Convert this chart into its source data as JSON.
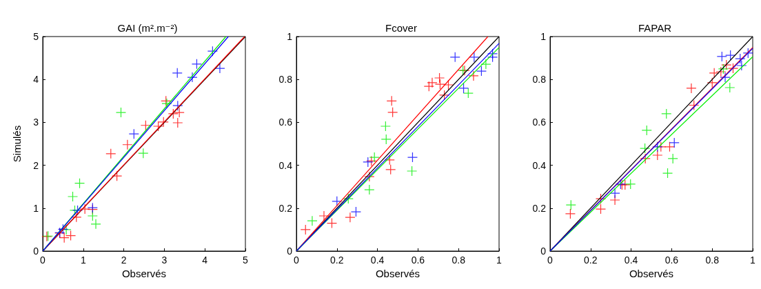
{
  "chart_data": [
    {
      "type": "scatter",
      "title": "GAI (m².m⁻²)",
      "xlabel": "Observés",
      "ylabel": "Simulés",
      "xlim": [
        0,
        5
      ],
      "ylim": [
        0,
        5
      ],
      "xticks": [
        0,
        1,
        2,
        3,
        4,
        5
      ],
      "yticks": [
        0,
        1,
        2,
        3,
        4,
        5
      ],
      "grid": false,
      "series": [
        {
          "marker": "cross",
          "color": "#ff0000",
          "x": [
            0.1,
            0.42,
            0.53,
            0.69,
            0.83,
            1.04,
            1.23,
            1.68,
            1.83,
            2.09,
            2.54,
            2.85,
            2.98,
            3.04,
            3.22,
            3.37,
            3.33
          ],
          "values": [
            0.34,
            0.42,
            0.31,
            0.36,
            0.79,
            0.98,
            0.97,
            2.27,
            1.75,
            2.48,
            2.93,
            2.91,
            3.01,
            3.5,
            3.2,
            3.23,
            2.99
          ]
        },
        {
          "marker": "cross",
          "color": "#00ee00",
          "x": [
            0.13,
            0.58,
            0.74,
            0.91,
            0.79,
            1.23,
            1.31,
            1.93,
            2.48,
            3.06
          ],
          "values": [
            0.35,
            0.5,
            1.27,
            1.58,
            0.95,
            0.82,
            0.63,
            3.23,
            2.28,
            3.44
          ]
        },
        {
          "marker": "cross",
          "color": "#0000ff",
          "x": [
            0.42,
            0.5,
            0.86,
            1.23,
            2.25,
            3.32,
            3.33,
            3.69,
            3.8,
            4.19,
            4.37
          ],
          "values": [
            0.43,
            0.51,
            0.95,
            1.01,
            2.73,
            4.15,
            3.39,
            4.05,
            4.36,
            4.66,
            4.26
          ]
        },
        {
          "type": "line",
          "marker": "none",
          "color": "#000000",
          "x": [
            0,
            5
          ],
          "values": [
            0,
            5
          ]
        },
        {
          "type": "line",
          "marker": "none",
          "color": "#ff0000",
          "x": [
            0,
            4.98
          ],
          "values": [
            0,
            5
          ]
        },
        {
          "type": "line",
          "marker": "none",
          "color": "#00ee00",
          "x": [
            0,
            4.52
          ],
          "values": [
            0,
            5
          ]
        },
        {
          "type": "line",
          "marker": "none",
          "color": "#0000ff",
          "x": [
            0,
            4.58
          ],
          "values": [
            0,
            5
          ]
        }
      ]
    },
    {
      "type": "scatter",
      "title": "Fcover",
      "xlabel": "Observés",
      "xlim": [
        0,
        1
      ],
      "ylim": [
        0,
        1
      ],
      "xticks": [
        0,
        0.2,
        0.4,
        0.6,
        0.8,
        1
      ],
      "yticks": [
        0,
        0.2,
        0.4,
        0.6,
        0.8,
        1
      ],
      "grid": false,
      "series": [
        {
          "marker": "cross",
          "color": "#ff0000",
          "x": [
            0.045,
            0.136,
            0.175,
            0.265,
            0.36,
            0.37,
            0.46,
            0.465,
            0.47,
            0.475,
            0.654,
            0.67,
            0.706,
            0.709,
            0.75,
            0.73,
            0.83,
            0.874
          ],
          "values": [
            0.1,
            0.164,
            0.13,
            0.157,
            0.347,
            0.42,
            0.425,
            0.38,
            0.7,
            0.647,
            0.768,
            0.785,
            0.807,
            0.778,
            0.775,
            0.727,
            0.842,
            0.817
          ]
        },
        {
          "marker": "cross",
          "color": "#00ee00",
          "x": [
            0.078,
            0.256,
            0.36,
            0.385,
            0.44,
            0.443,
            0.57,
            0.822,
            0.848,
            0.935
          ],
          "values": [
            0.141,
            0.244,
            0.286,
            0.437,
            0.582,
            0.521,
            0.373,
            0.842,
            0.736,
            0.871
          ]
        },
        {
          "marker": "cross",
          "color": "#0000ff",
          "x": [
            0.2,
            0.294,
            0.353,
            0.573,
            0.783,
            0.825,
            0.877,
            0.913,
            0.968,
            0.968
          ],
          "values": [
            0.232,
            0.183,
            0.415,
            0.437,
            0.904,
            0.759,
            0.904,
            0.839,
            0.92,
            0.904
          ]
        },
        {
          "type": "line",
          "marker": "none",
          "color": "#000000",
          "x": [
            0,
            1
          ],
          "values": [
            0,
            1
          ]
        },
        {
          "type": "line",
          "marker": "none",
          "color": "#ff0000",
          "x": [
            0,
            0.945
          ],
          "values": [
            0,
            1
          ]
        },
        {
          "type": "line",
          "marker": "none",
          "color": "#00ee00",
          "x": [
            0,
            1
          ],
          "values": [
            0,
            0.949
          ]
        },
        {
          "type": "line",
          "marker": "none",
          "color": "#0000ff",
          "x": [
            0,
            1
          ],
          "values": [
            0,
            0.968
          ]
        }
      ]
    },
    {
      "type": "scatter",
      "title": "FAPAR",
      "xlabel": "Observés",
      "xlim": [
        0,
        1
      ],
      "ylim": [
        0,
        1
      ],
      "xticks": [
        0,
        0.2,
        0.4,
        0.6,
        0.8,
        1
      ],
      "yticks": [
        0,
        0.2,
        0.4,
        0.6,
        0.8,
        1
      ],
      "grid": false,
      "series": [
        {
          "marker": "cross",
          "color": "#ff0000",
          "x": [
            0.1,
            0.25,
            0.25,
            0.32,
            0.355,
            0.37,
            0.47,
            0.53,
            0.547,
            0.59,
            0.697,
            0.71,
            0.8,
            0.81,
            0.843,
            0.87,
            0.903
          ],
          "values": [
            0.174,
            0.196,
            0.244,
            0.238,
            0.309,
            0.309,
            0.431,
            0.447,
            0.486,
            0.486,
            0.759,
            0.68,
            0.785,
            0.83,
            0.836,
            0.868,
            0.852
          ]
        },
        {
          "marker": "cross",
          "color": "#00ee00",
          "x": [
            0.103,
            0.397,
            0.468,
            0.477,
            0.574,
            0.606,
            0.58,
            0.855,
            0.887
          ],
          "values": [
            0.215,
            0.312,
            0.479,
            0.563,
            0.64,
            0.431,
            0.363,
            0.849,
            0.762
          ]
        },
        {
          "marker": "cross",
          "color": "#0000ff",
          "x": [
            0.32,
            0.348,
            0.53,
            0.613,
            0.848,
            0.89,
            0.864,
            0.938,
            0.977,
            0.945
          ],
          "values": [
            0.27,
            0.312,
            0.486,
            0.505,
            0.907,
            0.913,
            0.81,
            0.897,
            0.923,
            0.865
          ]
        },
        {
          "type": "line",
          "marker": "none",
          "color": "#000000",
          "x": [
            0,
            1
          ],
          "values": [
            0,
            1
          ]
        },
        {
          "type": "line",
          "marker": "none",
          "color": "#ff0000",
          "x": [
            0,
            1
          ],
          "values": [
            0,
            0.949
          ]
        },
        {
          "type": "line",
          "marker": "none",
          "color": "#00ee00",
          "x": [
            0,
            1
          ],
          "values": [
            0,
            0.906
          ]
        },
        {
          "type": "line",
          "marker": "none",
          "color": "#0000ff",
          "x": [
            0,
            1
          ],
          "values": [
            0,
            0.945
          ]
        }
      ]
    }
  ]
}
